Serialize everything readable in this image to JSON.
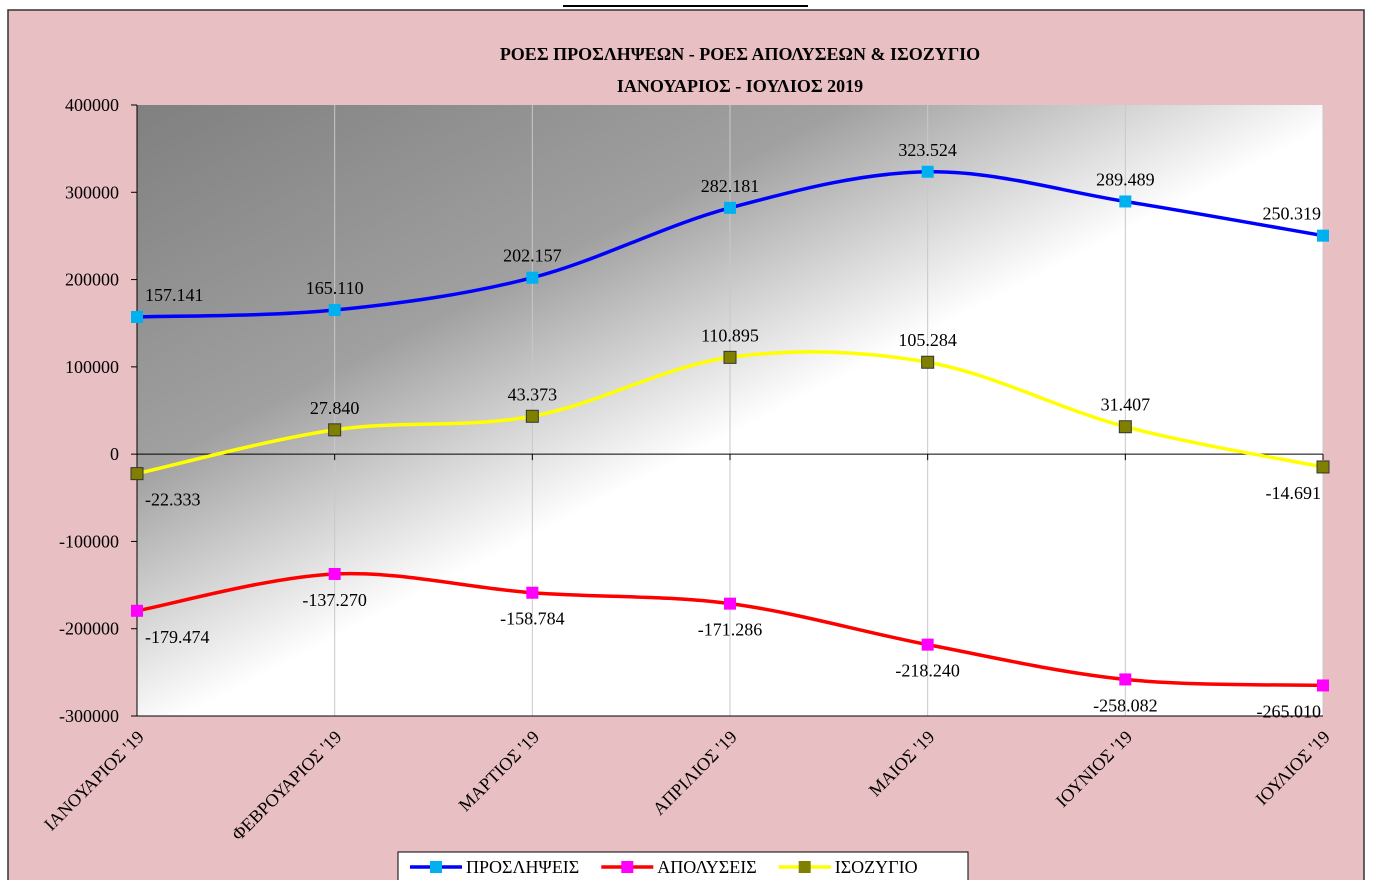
{
  "chart_data": {
    "type": "line",
    "title": "ΡΟΕΣ ΠΡΟΣΛΗΨΕΩΝ -  ΡΟΕΣ ΑΠΟΛΥΣΕΩΝ  & ΙΣΟΖΥΓΙΟ",
    "subtitle": "ΙΑΝΟΥΑΡΙΟΣ  -  ΙΟΥΛΙΟΣ  2019",
    "categories": [
      "ΙΑΝΟΥΑΡΙΟΣ '19",
      "ΦΕΒΡΟΥΑΡΙΟΣ '19",
      "ΜΑΡΤΙΟΣ '19",
      "ΑΠΡΙΛΙΟΣ '19",
      "ΜΑΙΟΣ '19",
      "ΙΟΥΝΙΟΣ '19",
      "ΙΟΥΛΙΟΣ '19"
    ],
    "series": [
      {
        "name": "ΠΡΟΣΛΗΨΕΙΣ",
        "color": "#0000ff",
        "marker_color": "#00b0f0",
        "values": [
          157141,
          165110,
          202157,
          282181,
          323524,
          289489,
          250319
        ],
        "value_labels": [
          "157.141",
          "165.110",
          "202.157",
          "282.181",
          "323.524",
          "289.489",
          "250.319"
        ]
      },
      {
        "name": "ΑΠΟΛΥΣΕΙΣ",
        "color": "#ff0000",
        "marker_color": "#ff00ff",
        "values": [
          -179474,
          -137270,
          -158784,
          -171286,
          -218240,
          -258082,
          -265010
        ],
        "value_labels": [
          "-179.474",
          "-137.270",
          "-158.784",
          "-171.286",
          "-218.240",
          "-258.082",
          "-265.010"
        ]
      },
      {
        "name": "ΙΣΟΖΥΓΙΟ",
        "color": "#ffff00",
        "marker_color": "#808000",
        "values": [
          -22333,
          27840,
          43373,
          110895,
          105284,
          31407,
          -14691
        ],
        "value_labels": [
          "-22.333",
          "27.840",
          "43.373",
          "110.895",
          "105.284",
          "31.407",
          "-14.691"
        ]
      }
    ],
    "ylim": [
      -300000,
      400000
    ],
    "yticks": [
      -300000,
      -200000,
      -100000,
      0,
      100000,
      200000,
      300000,
      400000
    ],
    "grid": true,
    "smooth": true,
    "legend": "bottom"
  }
}
